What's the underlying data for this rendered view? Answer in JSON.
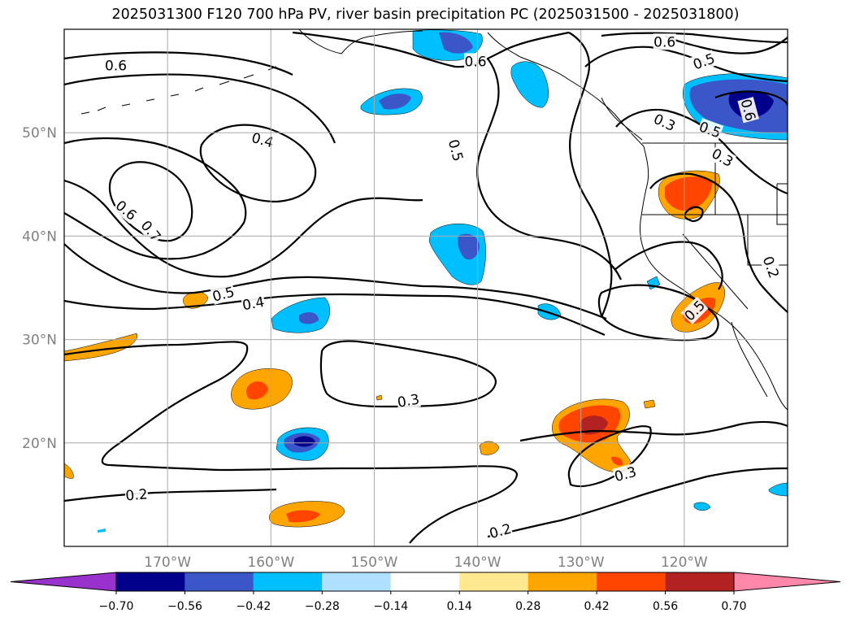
{
  "title": "2025031300 F120 700 hPa PV, river basin precipitation PC (2025031500 - 2025031800)",
  "map": {
    "lon_range": [
      -180,
      -110
    ],
    "lat_range": [
      10,
      60
    ],
    "lon_ticks": [
      {
        "lon": -170,
        "label": "170°W"
      },
      {
        "lon": -160,
        "label": "160°W"
      },
      {
        "lon": -150,
        "label": "150°W"
      },
      {
        "lon": -140,
        "label": "140°W"
      },
      {
        "lon": -130,
        "label": "130°W"
      },
      {
        "lon": -120,
        "label": "120°W"
      }
    ],
    "lat_ticks": [
      {
        "lat": 20,
        "label": "20°N"
      },
      {
        "lat": 30,
        "label": "30°N"
      },
      {
        "lat": 40,
        "label": "40°N"
      },
      {
        "lat": 50,
        "label": "50°N"
      }
    ],
    "gridlines": true,
    "contour_labels": [
      {
        "text": "0.6",
        "lon": -175,
        "lat": 56.5,
        "rot": 0
      },
      {
        "text": "0.6",
        "lon": -140.2,
        "lat": 56.9,
        "rot": 0
      },
      {
        "text": "0.6",
        "lon": -121.9,
        "lat": 58.8,
        "rot": 0
      },
      {
        "text": "0.5",
        "lon": -118.1,
        "lat": 56.9,
        "rot": -20
      },
      {
        "text": "0.4",
        "lon": -160.8,
        "lat": 49.3,
        "rot": 15
      },
      {
        "text": "0.5",
        "lon": -142.1,
        "lat": 48.3,
        "rot": 75
      },
      {
        "text": "0.3",
        "lon": -121.9,
        "lat": 51.0,
        "rot": 25
      },
      {
        "text": "0.6",
        "lon": -113.8,
        "lat": 52.2,
        "rot": 75
      },
      {
        "text": "0.5",
        "lon": -117.5,
        "lat": 50.3,
        "rot": 20
      },
      {
        "text": "0.3",
        "lon": -116.3,
        "lat": 47.6,
        "rot": 30
      },
      {
        "text": "0.6",
        "lon": -174.0,
        "lat": 42.5,
        "rot": 40
      },
      {
        "text": "0.7",
        "lon": -171.6,
        "lat": 40.5,
        "rot": 50
      },
      {
        "text": "0.5",
        "lon": -164.6,
        "lat": 34.4,
        "rot": -15
      },
      {
        "text": "0.4",
        "lon": -161.7,
        "lat": 33.5,
        "rot": -10
      },
      {
        "text": "0.2",
        "lon": -111.6,
        "lat": 37.0,
        "rot": 70
      },
      {
        "text": "0.5",
        "lon": -119.0,
        "lat": 32.8,
        "rot": -45
      },
      {
        "text": "0.3",
        "lon": -146.7,
        "lat": 24.1,
        "rot": -10
      },
      {
        "text": "0.3",
        "lon": -125.7,
        "lat": 17.0,
        "rot": -15
      },
      {
        "text": "0.2",
        "lon": -173.0,
        "lat": 15.0,
        "rot": -5
      },
      {
        "text": "0.2",
        "lon": -137.8,
        "lat": 11.5,
        "rot": -15
      }
    ]
  },
  "colorbar": {
    "ticks": [
      "−0.70",
      "−0.56",
      "−0.42",
      "−0.28",
      "−0.14",
      "0.14",
      "0.28",
      "0.42",
      "0.56",
      "0.70"
    ],
    "colors": [
      "#9932cc",
      "#00008b",
      "#3a56c8",
      "#00bfff",
      "#b0e0ff",
      "#ffffff",
      "#ffe890",
      "#ffa500",
      "#ff4500",
      "#b22222",
      "#ff88aa"
    ],
    "extend": "both"
  },
  "fill_colors": {
    "neg_light": "#00bfff",
    "neg_mid": "#3a56c8",
    "neg_dark": "#00008b",
    "pos_light": "#ffa500",
    "pos_mid": "#ff4500",
    "pos_dark": "#b22222",
    "pos_pale": "#ffe890",
    "neg_pale": "#b0e0ff"
  }
}
